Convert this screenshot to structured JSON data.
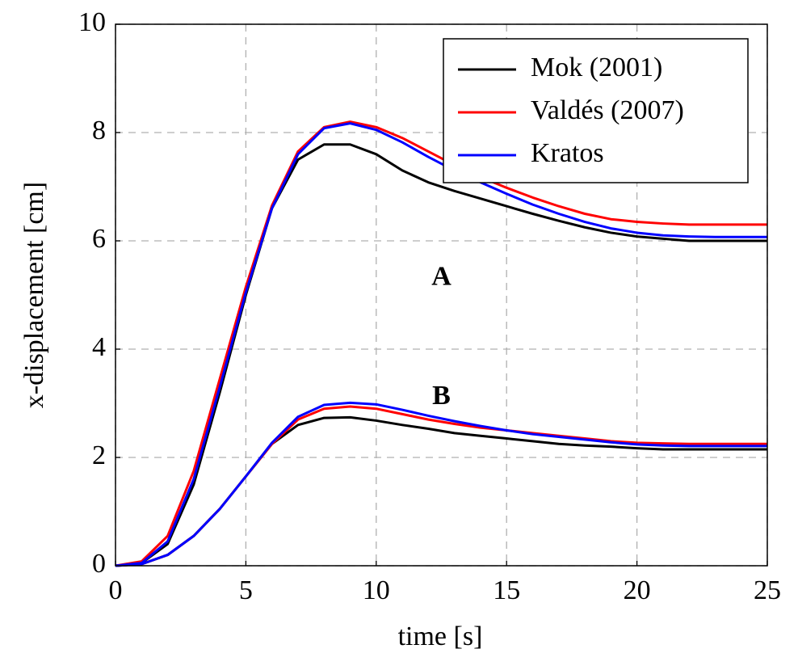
{
  "chart_data": {
    "type": "line",
    "xlabel": "time [s]",
    "ylabel": "x-displacement [cm]",
    "xlim": [
      0,
      25
    ],
    "ylim": [
      0,
      10
    ],
    "xticks": [
      0,
      5,
      10,
      15,
      20,
      25
    ],
    "yticks": [
      0,
      2,
      4,
      6,
      8,
      10
    ],
    "grid": true,
    "legend": "upper right",
    "annotations": [
      "A",
      "B"
    ],
    "x": [
      0,
      1,
      2,
      3,
      4,
      5,
      6,
      7,
      8,
      9,
      10,
      11,
      12,
      13,
      14,
      15,
      16,
      17,
      18,
      19,
      20,
      21,
      22,
      23,
      24,
      25
    ],
    "series": [
      {
        "name": "Mok (2001)",
        "color": "#000000",
        "values": [
          [
            0,
            0.05,
            0.4,
            1.5,
            3.2,
            5.0,
            6.6,
            7.5,
            7.78,
            7.78,
            7.6,
            7.3,
            7.08,
            6.92,
            6.78,
            6.64,
            6.5,
            6.37,
            6.25,
            6.15,
            6.08,
            6.04,
            6.0,
            6.0,
            6.0,
            6.0
          ],
          [
            0,
            0.03,
            0.2,
            0.55,
            1.05,
            1.65,
            2.25,
            2.6,
            2.73,
            2.74,
            2.68,
            2.6,
            2.53,
            2.45,
            2.4,
            2.35,
            2.3,
            2.25,
            2.22,
            2.2,
            2.17,
            2.15,
            2.15,
            2.15,
            2.15,
            2.15
          ]
        ]
      },
      {
        "name": "Valdés (2007)",
        "color": "#ff0000",
        "values": [
          [
            0,
            0.08,
            0.55,
            1.75,
            3.45,
            5.15,
            6.65,
            7.65,
            8.1,
            8.2,
            8.1,
            7.9,
            7.65,
            7.4,
            7.18,
            6.98,
            6.8,
            6.64,
            6.5,
            6.4,
            6.35,
            6.32,
            6.3,
            6.3,
            6.3,
            6.3
          ],
          [
            0,
            0.03,
            0.2,
            0.55,
            1.05,
            1.65,
            2.25,
            2.7,
            2.9,
            2.94,
            2.9,
            2.8,
            2.7,
            2.62,
            2.55,
            2.5,
            2.45,
            2.4,
            2.35,
            2.3,
            2.27,
            2.26,
            2.25,
            2.25,
            2.25,
            2.25
          ]
        ]
      },
      {
        "name": "Kratos",
        "color": "#0000ff",
        "values": [
          [
            0,
            0.05,
            0.45,
            1.6,
            3.3,
            5.05,
            6.6,
            7.6,
            8.08,
            8.17,
            8.05,
            7.82,
            7.55,
            7.3,
            7.08,
            6.87,
            6.67,
            6.5,
            6.35,
            6.23,
            6.15,
            6.1,
            6.08,
            6.07,
            6.07,
            6.07
          ],
          [
            0,
            0.03,
            0.2,
            0.55,
            1.05,
            1.65,
            2.27,
            2.75,
            2.97,
            3.01,
            2.98,
            2.88,
            2.77,
            2.67,
            2.58,
            2.5,
            2.43,
            2.38,
            2.33,
            2.28,
            2.24,
            2.22,
            2.21,
            2.21,
            2.21,
            2.21
          ]
        ]
      }
    ]
  }
}
